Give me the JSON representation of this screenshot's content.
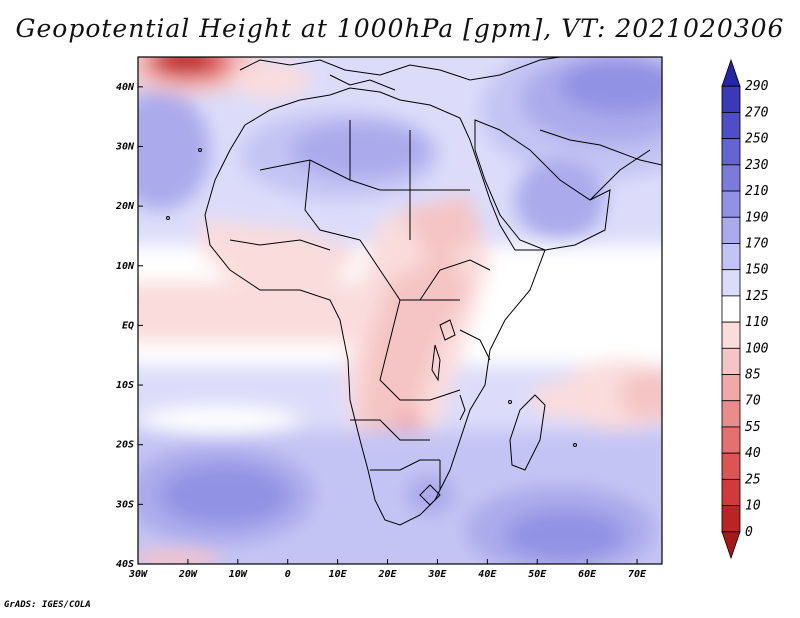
{
  "title": "Geopotential Height at 1000hPa [gpm], VT: 2021020306",
  "footer": "GrADS: IGES/COLA",
  "map": {
    "lon_range": [
      -30,
      75
    ],
    "lat_range": [
      -40,
      45
    ],
    "lon_ticks": [
      "30W",
      "20W",
      "10W",
      "0",
      "10E",
      "20E",
      "30E",
      "40E",
      "50E",
      "60E",
      "70E"
    ],
    "lon_tick_values": [
      -30,
      -20,
      -10,
      0,
      10,
      20,
      30,
      40,
      50,
      60,
      70
    ],
    "lat_ticks": [
      "40N",
      "30N",
      "20N",
      "10N",
      "EQ",
      "10S",
      "20S",
      "30S",
      "40S"
    ],
    "lat_tick_values": [
      40,
      30,
      20,
      10,
      0,
      -10,
      -20,
      -30,
      -40
    ]
  },
  "colorbar": {
    "labels": [
      "290",
      "270",
      "250",
      "230",
      "210",
      "190",
      "170",
      "150",
      "125",
      "110",
      "100",
      "85",
      "70",
      "55",
      "40",
      "25",
      "10",
      "0"
    ],
    "colors": [
      "#2525a8",
      "#3a3ab8",
      "#4e4ec6",
      "#6464d2",
      "#7b7bdc",
      "#9292e4",
      "#aaaaec",
      "#c4c4f4",
      "#dcdcfa",
      "#ffffff",
      "#fadcdc",
      "#f5c4c4",
      "#f0a8a8",
      "#ea8c8c",
      "#e47070",
      "#dc5454",
      "#d03a3a",
      "#bc2424",
      "#a81818"
    ]
  }
}
